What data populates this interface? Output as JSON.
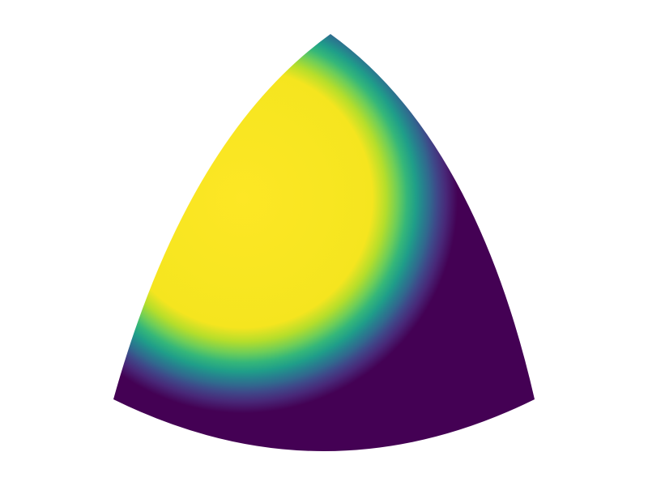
{
  "chart_data": {
    "type": "surface",
    "colormap": "viridis"
  }
}
